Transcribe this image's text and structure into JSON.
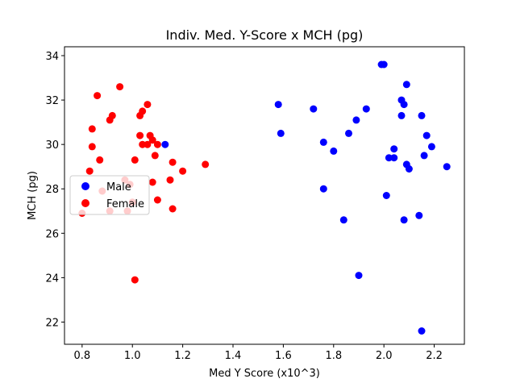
{
  "chart_data": {
    "type": "scatter",
    "title": "Indiv. Med. Y-Score x MCH (pg)",
    "xlabel": "Med Y Score (x10^3)",
    "ylabel": "MCH (pg)",
    "xlim": [
      0.73,
      2.32
    ],
    "ylim": [
      21.0,
      34.4
    ],
    "xticks": [
      0.8,
      1.0,
      1.2,
      1.4,
      1.6,
      1.8,
      2.0,
      2.2
    ],
    "xtick_labels": [
      "0.8",
      "1.0",
      "1.2",
      "1.4",
      "1.6",
      "1.8",
      "2.0",
      "2.2"
    ],
    "yticks": [
      22,
      24,
      26,
      28,
      30,
      32,
      34
    ],
    "ytick_labels": [
      "22",
      "24",
      "26",
      "28",
      "30",
      "32",
      "34"
    ],
    "grid": false,
    "legend_position": "left-middle",
    "series": [
      {
        "name": "Male",
        "color": "#0000ff",
        "points": [
          [
            1.13,
            30.0
          ],
          [
            1.58,
            31.8
          ],
          [
            1.59,
            30.5
          ],
          [
            1.72,
            31.6
          ],
          [
            1.76,
            30.1
          ],
          [
            1.76,
            28.0
          ],
          [
            1.8,
            29.7
          ],
          [
            1.84,
            26.6
          ],
          [
            1.86,
            30.5
          ],
          [
            1.89,
            31.1
          ],
          [
            1.9,
            24.1
          ],
          [
            1.93,
            31.6
          ],
          [
            1.99,
            33.6
          ],
          [
            2.0,
            33.6
          ],
          [
            2.01,
            27.7
          ],
          [
            2.02,
            29.4
          ],
          [
            2.04,
            29.8
          ],
          [
            2.04,
            29.4
          ],
          [
            2.07,
            32.0
          ],
          [
            2.07,
            31.3
          ],
          [
            2.08,
            31.8
          ],
          [
            2.08,
            26.6
          ],
          [
            2.09,
            32.7
          ],
          [
            2.09,
            29.1
          ],
          [
            2.1,
            28.9
          ],
          [
            2.14,
            26.8
          ],
          [
            2.15,
            31.3
          ],
          [
            2.15,
            21.6
          ],
          [
            2.16,
            29.5
          ],
          [
            2.17,
            30.4
          ],
          [
            2.19,
            29.9
          ],
          [
            2.25,
            29.0
          ]
        ]
      },
      {
        "name": "Female",
        "color": "#ff0000",
        "points": [
          [
            0.8,
            26.9
          ],
          [
            0.83,
            28.8
          ],
          [
            0.84,
            30.7
          ],
          [
            0.84,
            29.9
          ],
          [
            0.86,
            32.2
          ],
          [
            0.87,
            29.3
          ],
          [
            0.88,
            27.9
          ],
          [
            0.91,
            31.1
          ],
          [
            0.91,
            27.0
          ],
          [
            0.92,
            31.3
          ],
          [
            0.95,
            32.6
          ],
          [
            0.97,
            28.4
          ],
          [
            0.98,
            27.0
          ],
          [
            0.99,
            28.2
          ],
          [
            1.0,
            27.4
          ],
          [
            1.01,
            23.9
          ],
          [
            1.01,
            29.3
          ],
          [
            1.03,
            31.3
          ],
          [
            1.03,
            30.4
          ],
          [
            1.04,
            31.5
          ],
          [
            1.04,
            30.0
          ],
          [
            1.06,
            30.0
          ],
          [
            1.06,
            31.8
          ],
          [
            1.07,
            30.4
          ],
          [
            1.08,
            28.3
          ],
          [
            1.08,
            30.2
          ],
          [
            1.09,
            29.5
          ],
          [
            1.1,
            30.0
          ],
          [
            1.1,
            27.5
          ],
          [
            1.15,
            28.4
          ],
          [
            1.16,
            29.2
          ],
          [
            1.16,
            27.1
          ],
          [
            1.2,
            28.8
          ],
          [
            1.29,
            29.1
          ]
        ]
      }
    ]
  }
}
